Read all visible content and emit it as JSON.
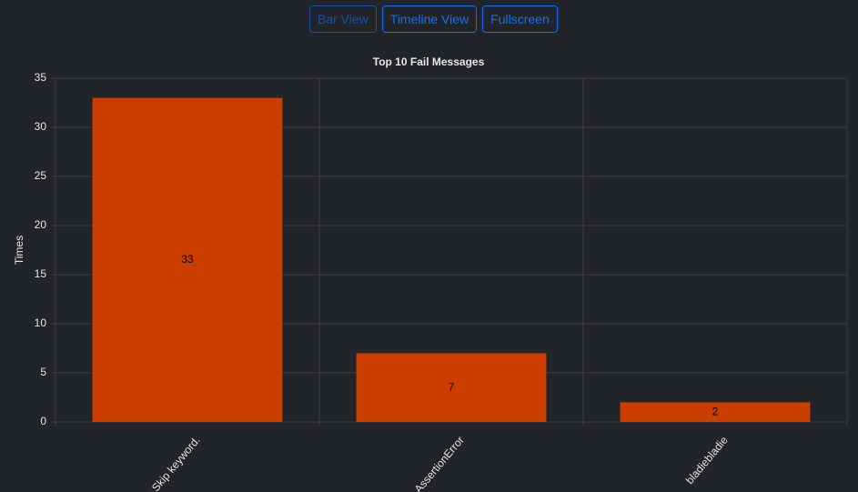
{
  "buttons": [
    "Bar View",
    "Timeline View",
    "Fullscreen"
  ],
  "chart_data": {
    "type": "bar",
    "title": "Top 10 Fail Messages",
    "y_label": "Times",
    "categories": [
      "with Skip keyword.",
      "AssertionError",
      "bladiebladie"
    ],
    "values": [
      33,
      7,
      2
    ],
    "color": "#cc3e00",
    "ylim": [
      0,
      35
    ],
    "yticks": [
      0,
      5,
      10,
      15,
      20,
      25,
      30,
      35
    ],
    "grid": true
  }
}
